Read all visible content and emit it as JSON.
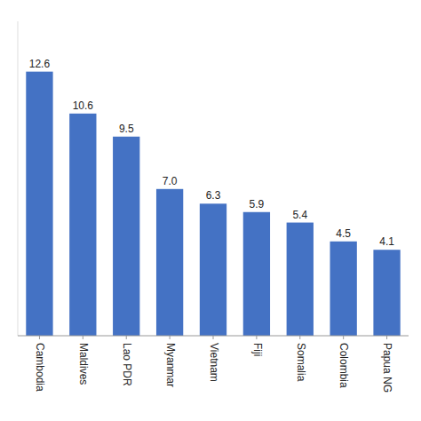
{
  "chart_data": {
    "type": "bar",
    "categories": [
      "Cambodia",
      "Maldives",
      "Lao PDR",
      "Myanmar",
      "Vietnam",
      "Fiji",
      "Somalia",
      "Colombia",
      "Papua NG"
    ],
    "values": [
      12.6,
      10.6,
      9.5,
      7.0,
      6.3,
      5.9,
      5.4,
      4.5,
      4.1
    ],
    "value_labels": [
      "12.6",
      "10.6",
      "9.5",
      "7.0",
      "6.3",
      "5.9",
      "5.4",
      "4.5",
      "4.1"
    ],
    "color": "#4472C4",
    "ylim": [
      0,
      15
    ],
    "grid": false,
    "data_labels": true,
    "tick_labels": "x"
  }
}
